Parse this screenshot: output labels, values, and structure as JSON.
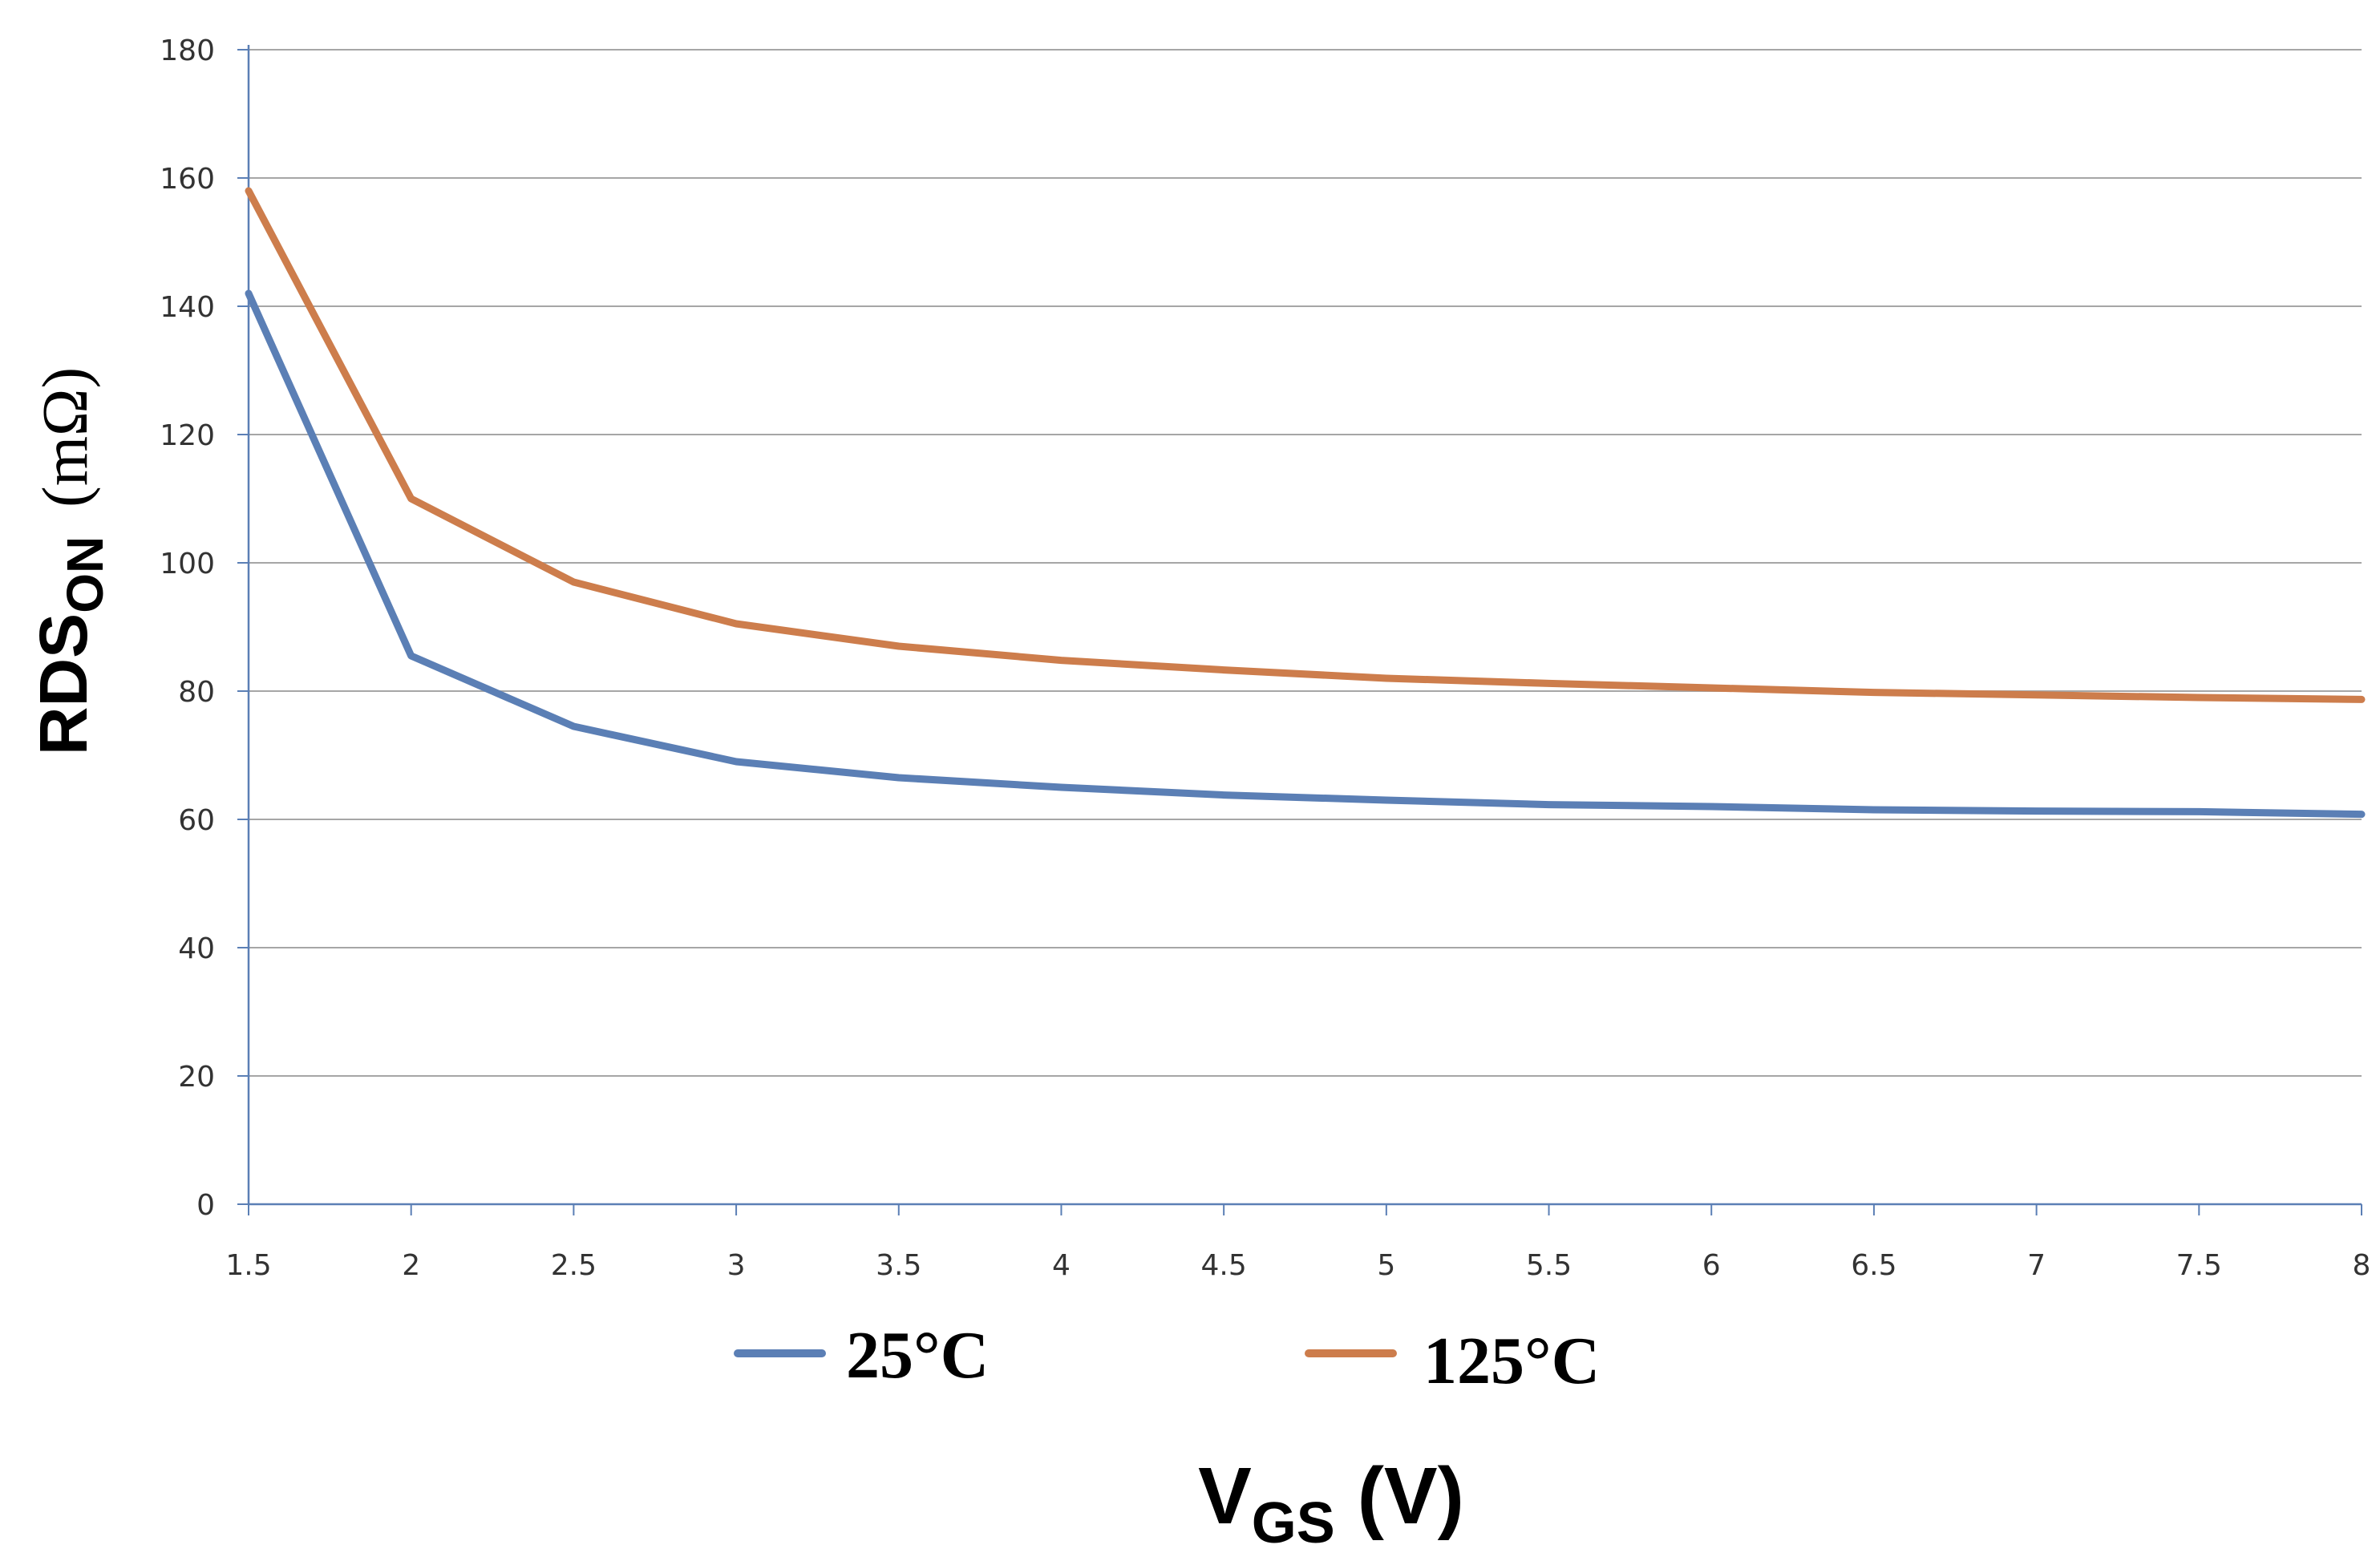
{
  "chart_data": {
    "type": "line",
    "title": "",
    "x": [
      1.5,
      2,
      2.5,
      3,
      3.5,
      4,
      4.5,
      5,
      5.5,
      6,
      6.5,
      7,
      7.5,
      8
    ],
    "x_tick_labels": [
      "1.5",
      "2",
      "2.5",
      "3",
      "3.5",
      "4",
      "4.5",
      "5",
      "5.5",
      "6",
      "6.5",
      "7",
      "7.5",
      "8"
    ],
    "y_ticks": [
      0,
      20,
      40,
      60,
      80,
      100,
      120,
      140,
      160,
      180
    ],
    "xlim": [
      1.5,
      8
    ],
    "ylim": [
      0,
      180
    ],
    "grid": "horizontal",
    "xlabel": {
      "main": "V",
      "sub": "GS",
      "unit": " (V)"
    },
    "ylabel": {
      "main": "RDS",
      "sub": "ON",
      "unit": "(mΩ)"
    },
    "legend_position": "bottom",
    "series": [
      {
        "name": "25°C",
        "color": "#5b7fb5",
        "values": [
          142,
          85.5,
          74.5,
          69,
          66.5,
          65,
          63.8,
          63,
          62.3,
          62,
          61.5,
          61.3,
          61.2,
          60.8
        ]
      },
      {
        "name": "125°C",
        "color": "#cd7d4c",
        "values": [
          158,
          110,
          97,
          90.5,
          87,
          84.8,
          83.3,
          82,
          81.2,
          80.5,
          79.8,
          79.4,
          79,
          78.7
        ]
      }
    ]
  }
}
